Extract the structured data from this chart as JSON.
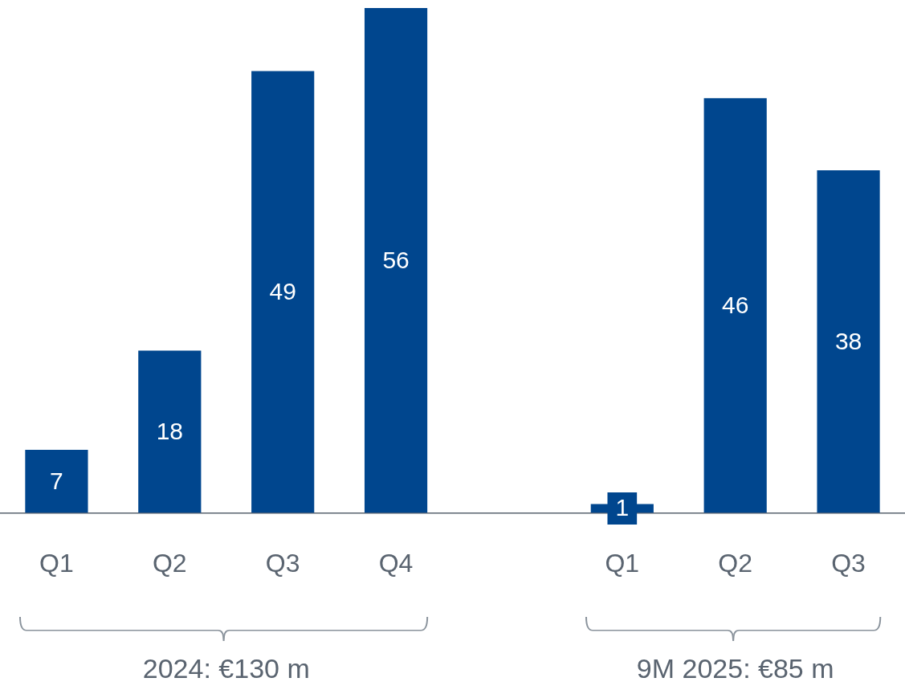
{
  "chart_data": {
    "type": "bar",
    "categories": [
      "Q1",
      "Q2",
      "Q3",
      "Q4",
      null,
      "Q1",
      "Q2",
      "Q3"
    ],
    "values": [
      7,
      18,
      49,
      56,
      null,
      1,
      46,
      38
    ],
    "color": "#00468e",
    "data_labels": true,
    "grid": false,
    "legend": false,
    "annotations": [
      "2024: €130 m",
      "9M 2025: €85 m"
    ]
  }
}
